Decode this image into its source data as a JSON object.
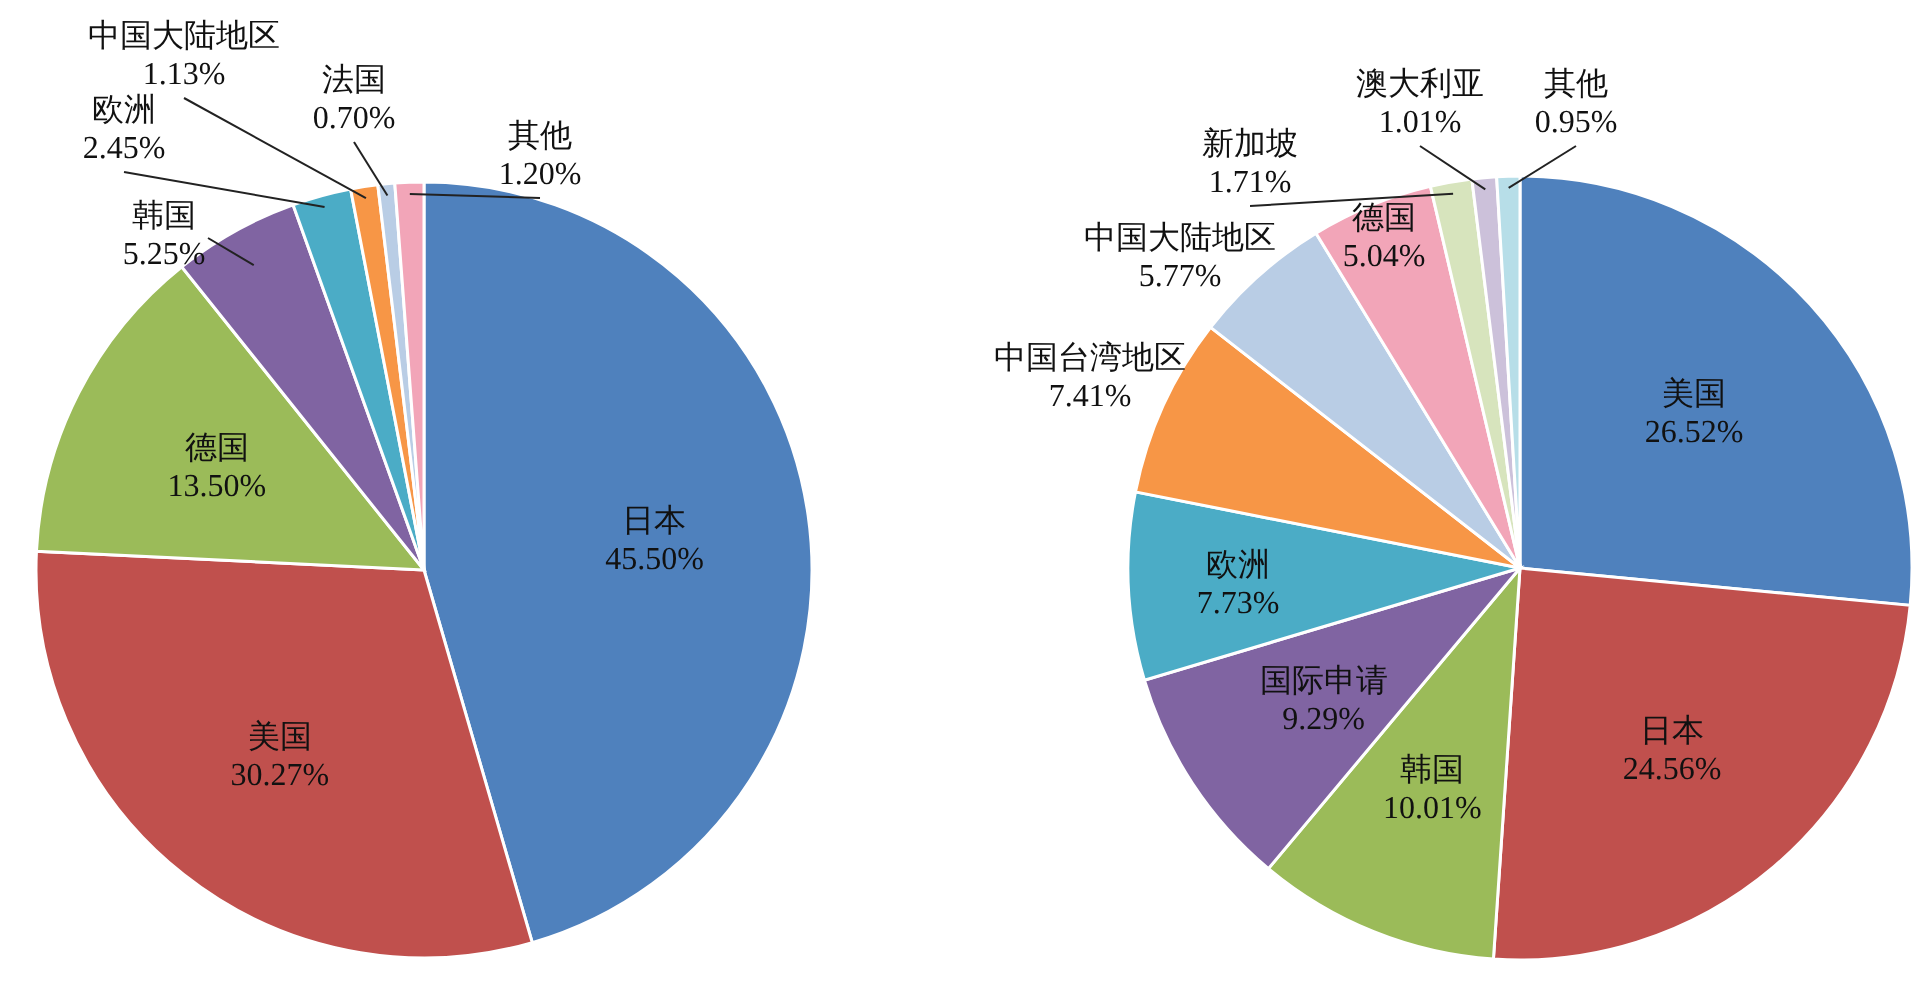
{
  "chart_data": [
    {
      "type": "pie",
      "categories": [
        "日本",
        "美国",
        "德国",
        "韩国",
        "欧洲",
        "中国大陆地区",
        "法国",
        "其他"
      ],
      "values": [
        45.5,
        30.27,
        13.5,
        5.25,
        2.45,
        1.13,
        0.7,
        1.2
      ],
      "colors": [
        "#4f81bd",
        "#c0504d",
        "#9bbb59",
        "#8064a2",
        "#4bacc6",
        "#f79646",
        "#b9cde5",
        "#f2a5b8"
      ],
      "value_labels": [
        "45.50%",
        "30.27%",
        "13.50%",
        "5.25%",
        "2.45%",
        "1.13%",
        "0.70%",
        "1.20%"
      ]
    },
    {
      "type": "pie",
      "categories": [
        "美国",
        "日本",
        "韩国",
        "国际申请",
        "欧洲",
        "中国台湾地区",
        "中国大陆地区",
        "德国",
        "新加坡",
        "澳大利亚",
        "其他"
      ],
      "values": [
        26.52,
        24.56,
        10.01,
        9.29,
        7.73,
        7.41,
        5.77,
        5.04,
        1.71,
        1.01,
        0.95
      ],
      "colors": [
        "#4f81bd",
        "#c0504d",
        "#9bbb59",
        "#8064a2",
        "#4bacc6",
        "#f79646",
        "#b9cde5",
        "#f2a5b8",
        "#d7e4bd",
        "#ccc1da",
        "#b7dee8"
      ],
      "value_labels": [
        "26.52%",
        "24.56%",
        "10.01%",
        "9.29%",
        "7.73%",
        "7.41%",
        "5.77%",
        "5.04%",
        "1.71%",
        "1.01%",
        "0.95%"
      ]
    }
  ]
}
